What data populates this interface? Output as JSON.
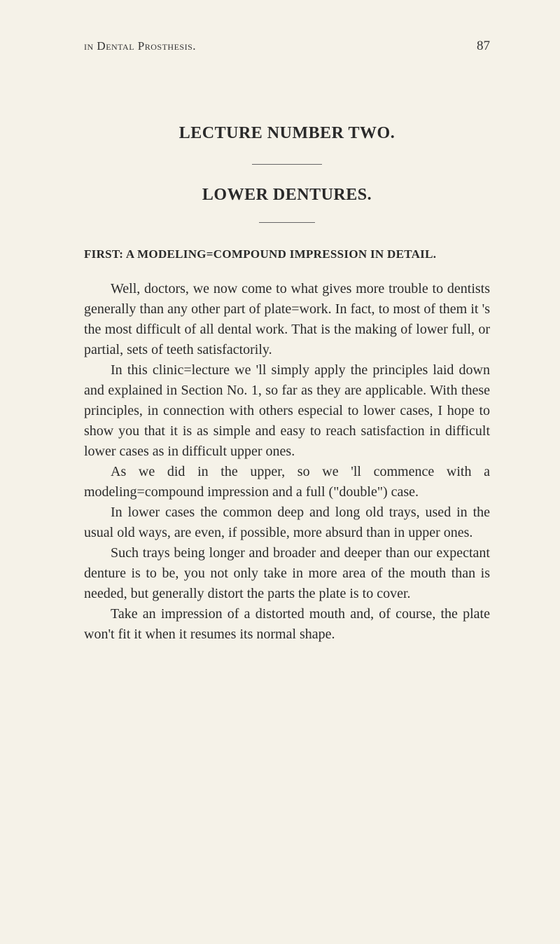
{
  "header": {
    "running_title": "in Dental Prosthesis.",
    "page_number": "87"
  },
  "lecture_title": "LECTURE NUMBER TWO.",
  "section_title": "LOWER DENTURES.",
  "subheading": "FIRST: A MODELING=COMPOUND IMPRESSION IN DETAIL.",
  "paragraphs": {
    "p1": "Well, doctors, we now come to what gives more trouble to dentists generally than any other part of plate=work. In fact, to most of them it 's the most difficult of all dental work. That is the making of lower full, or partial, sets of teeth satisfactorily.",
    "p2": "In this clinic=lecture we 'll simply apply the principles laid down and explained in Section No. 1, so far as they are applicable. With these principles, in connection with others especial to lower cases, I hope to show you that it is as simple and easy to reach satisfaction in difficult lower cases as in difficult upper ones.",
    "p3": "As we did in the upper, so we 'll commence with a modeling=compound impression and a full (\"double\") case.",
    "p4": "In lower cases the common deep and long old trays, used in the usual old ways, are even, if possible, more absurd than in upper ones.",
    "p5": "Such trays being longer and broader and deeper than our expectant denture is to be, you not only take in more area of the mouth than is needed, but generally distort the parts the plate is to cover.",
    "p6": "Take an impression of a distorted mouth and, of course, the plate won't fit it when it resumes its normal shape."
  }
}
